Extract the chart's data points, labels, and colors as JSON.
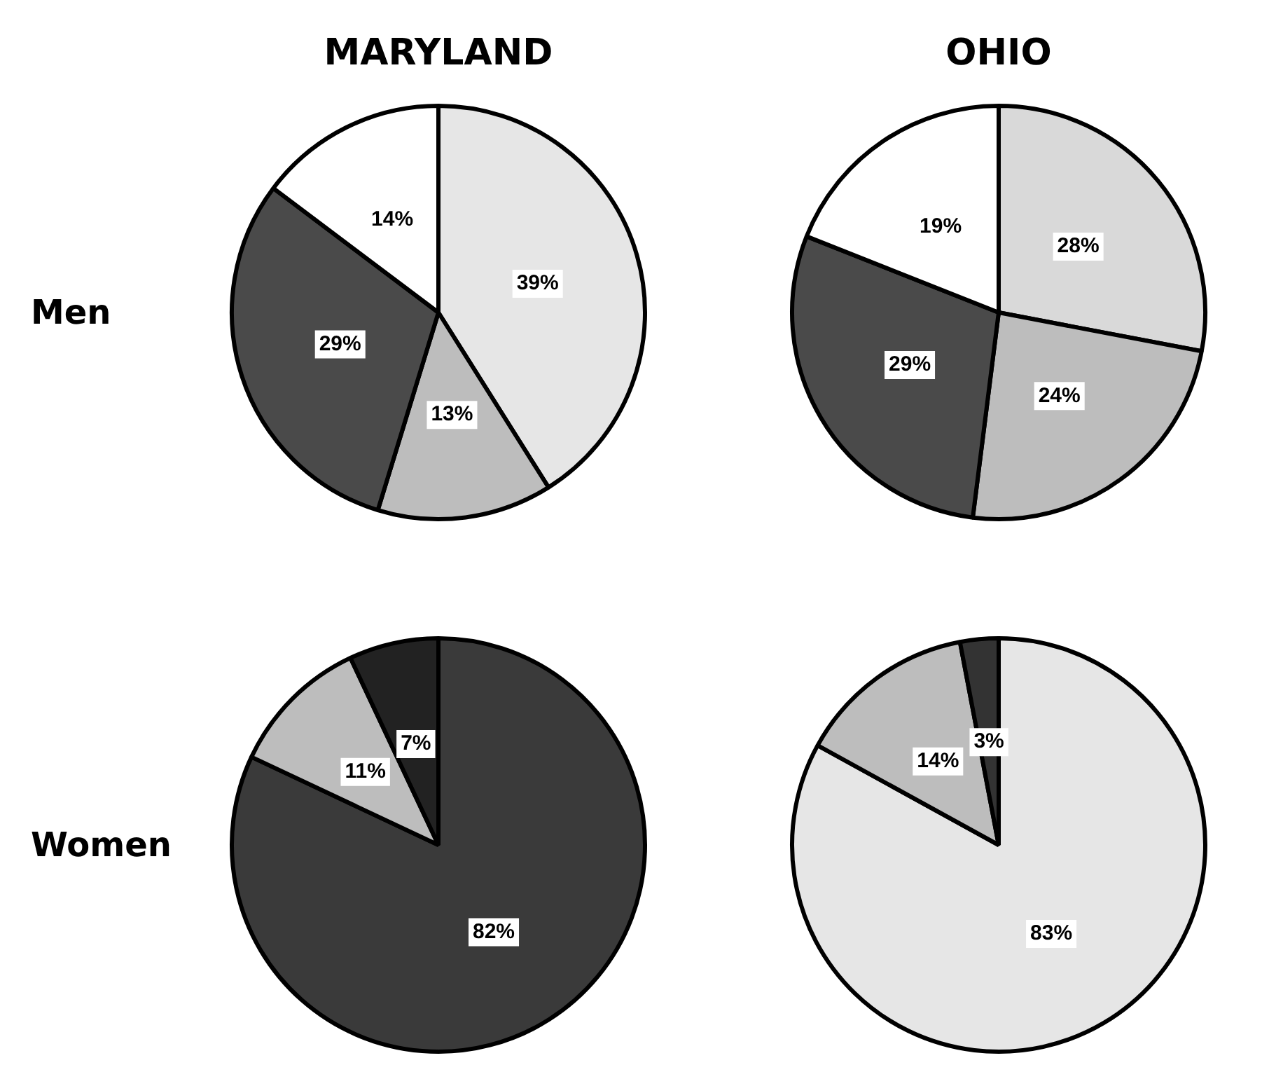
{
  "chart_data": [
    {
      "type": "pie",
      "title": "MARYLAND",
      "ylabel": "Men",
      "categories": [
        null,
        null,
        null,
        null
      ],
      "values": [
        39,
        13,
        29,
        14
      ],
      "colors": [
        "#e6e6e6",
        "#bdbdbd",
        "#4a4a4a",
        "#ffffff"
      ],
      "value_labels": [
        "39%",
        "13%",
        "29%",
        "14%"
      ]
    },
    {
      "type": "pie",
      "title": "OHIO",
      "categories": [
        null,
        null,
        null,
        null
      ],
      "values": [
        28,
        24,
        29,
        19
      ],
      "colors": [
        "#d9d9d9",
        "#bdbdbd",
        "#4a4a4a",
        "#ffffff"
      ],
      "value_labels": [
        "28%",
        "24%",
        "29%",
        "19%"
      ]
    },
    {
      "type": "pie",
      "ylabel": "Women",
      "categories": [
        null,
        null,
        null
      ],
      "values": [
        82,
        11,
        7
      ],
      "colors": [
        "#3a3a3a",
        "#bdbdbd",
        "#222222"
      ],
      "value_labels": [
        "82%",
        "11%",
        "7%"
      ]
    },
    {
      "type": "pie",
      "categories": [
        null,
        null,
        null
      ],
      "values": [
        83,
        14,
        3
      ],
      "colors": [
        "#e6e6e6",
        "#bdbdbd",
        "#333333"
      ],
      "value_labels": [
        "83%",
        "14%",
        "3%"
      ]
    }
  ]
}
